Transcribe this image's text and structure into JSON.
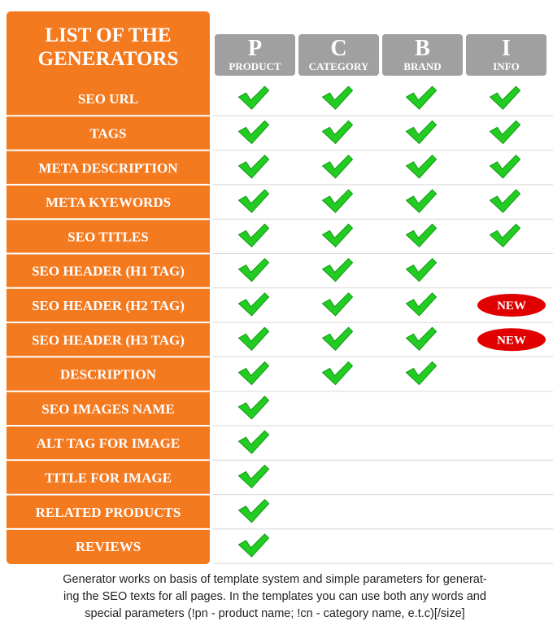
{
  "header": {
    "title_line1": "LIST OF THE",
    "title_line2": "GENERATORS"
  },
  "columns": [
    {
      "letter": "P",
      "label": "PRODUCT"
    },
    {
      "letter": "C",
      "label": "CATEGORY"
    },
    {
      "letter": "B",
      "label": "BRAND"
    },
    {
      "letter": "I",
      "label": "INFO"
    }
  ],
  "rows": [
    {
      "label": "SEO URL"
    },
    {
      "label": "TAGS"
    },
    {
      "label": "META DESCRIPTION"
    },
    {
      "label": "META KYEWORDS"
    },
    {
      "label": "SEO TITLES"
    },
    {
      "label": "SEO HEADER (H1 TAG)"
    },
    {
      "label": "SEO HEADER (H2 TAG)",
      "badge": "NEW"
    },
    {
      "label": "SEO HEADER (H3 TAG)",
      "badge": "NEW"
    },
    {
      "label": "DESCRIPTION"
    },
    {
      "label": "SEO IMAGES NAME"
    },
    {
      "label": "ALT TAG FOR IMAGE"
    },
    {
      "label": "TITLE FOR IMAGE"
    },
    {
      "label": "RELATED PRODUCTS"
    },
    {
      "label": "REVIEWS"
    }
  ],
  "footer": {
    "lines": [
      "Generator works on basis of template system and simple parameters for generat-",
      "ing the SEO texts for all pages. In the templates you can use both any words and",
      "special parameters (!pn - product name; !cn - category name, e.t.c)[/size]"
    ]
  }
}
